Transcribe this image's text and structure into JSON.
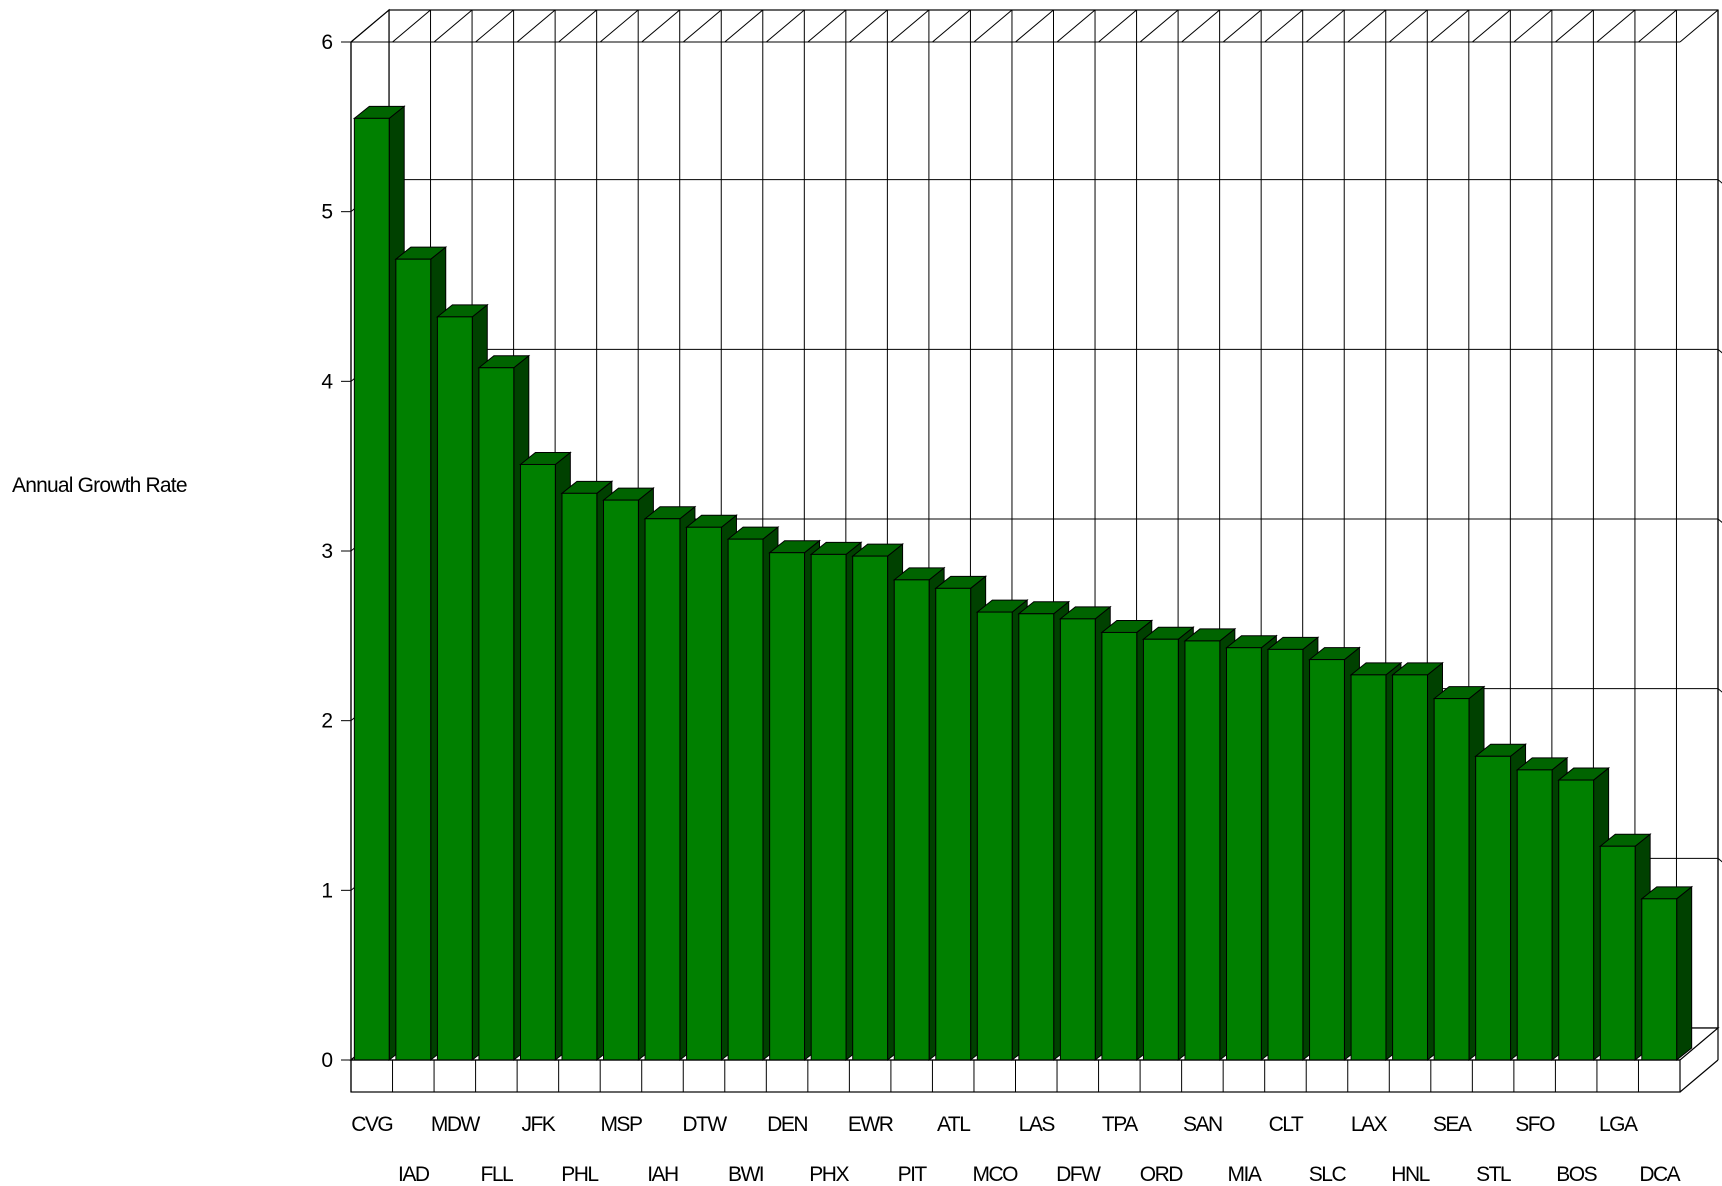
{
  "chart_data": {
    "type": "bar",
    "title": "",
    "xlabel": "",
    "ylabel": "Annual Growth Rate",
    "ylim": [
      0,
      6
    ],
    "yticks": [
      0,
      1,
      2,
      3,
      4,
      5,
      6
    ],
    "grid": true,
    "style": "3d",
    "colors": {
      "bar_front": "#008000",
      "bar_top": "#006400",
      "bar_side": "#004100",
      "edge": "#000000"
    },
    "categories": [
      "CVG",
      "IAD",
      "MDW",
      "FLL",
      "JFK",
      "PHL",
      "MSP",
      "IAH",
      "DTW",
      "BWI",
      "DEN",
      "PHX",
      "EWR",
      "PIT",
      "ATL",
      "MCO",
      "LAS",
      "DFW",
      "TPA",
      "ORD",
      "SAN",
      "MIA",
      "CLT",
      "SLC",
      "LAX",
      "HNL",
      "SEA",
      "STL",
      "SFO",
      "BOS",
      "LGA",
      "DCA"
    ],
    "values": [
      5.55,
      4.72,
      4.38,
      4.08,
      3.51,
      3.34,
      3.3,
      3.19,
      3.14,
      3.07,
      2.99,
      2.98,
      2.97,
      2.83,
      2.78,
      2.64,
      2.63,
      2.6,
      2.52,
      2.48,
      2.47,
      2.43,
      2.42,
      2.36,
      2.27,
      2.27,
      2.13,
      1.79,
      1.71,
      1.65,
      1.26,
      0.95
    ]
  }
}
